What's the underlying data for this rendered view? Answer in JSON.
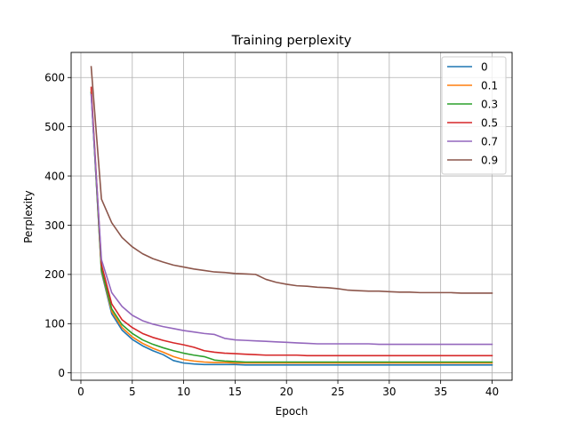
{
  "chart_data": {
    "type": "line",
    "title": "Training perplexity",
    "xlabel": "Epoch",
    "ylabel": "Perplexity",
    "xlim": [
      -0.95,
      41.95
    ],
    "ylim": [
      -15,
      651
    ],
    "xticks": [
      0,
      5,
      10,
      15,
      20,
      25,
      30,
      35,
      40
    ],
    "yticks": [
      0,
      100,
      200,
      300,
      400,
      500,
      600
    ],
    "grid": true,
    "legend_position": "top-right",
    "x": [
      1,
      2,
      3,
      4,
      5,
      6,
      7,
      8,
      9,
      10,
      11,
      12,
      13,
      14,
      15,
      16,
      17,
      18,
      19,
      20,
      21,
      22,
      23,
      24,
      25,
      26,
      27,
      28,
      29,
      30,
      31,
      32,
      33,
      34,
      35,
      36,
      37,
      38,
      39,
      40
    ],
    "series": [
      {
        "name": "0",
        "color": "#1f77b4",
        "values": [
          570,
          205,
          120,
          87,
          68,
          55,
          45,
          37,
          25,
          20,
          18,
          17,
          17,
          17,
          17,
          16,
          16,
          16,
          16,
          16,
          16,
          16,
          16,
          16,
          16,
          16,
          16,
          16,
          16,
          16,
          16,
          16,
          16,
          16,
          16,
          16,
          16,
          16,
          16,
          16
        ]
      },
      {
        "name": "0.1",
        "color": "#ff7f0e",
        "values": [
          575,
          208,
          125,
          92,
          73,
          60,
          50,
          42,
          33,
          27,
          24,
          22,
          21,
          21,
          20,
          20,
          20,
          20,
          20,
          20,
          20,
          20,
          20,
          20,
          20,
          20,
          20,
          20,
          20,
          20,
          20,
          20,
          20,
          20,
          20,
          20,
          20,
          20,
          20,
          20
        ]
      },
      {
        "name": "0.3",
        "color": "#2ca02c",
        "values": [
          570,
          210,
          130,
          98,
          80,
          67,
          58,
          51,
          45,
          40,
          36,
          33,
          26,
          24,
          23,
          22,
          22,
          22,
          22,
          22,
          22,
          22,
          22,
          22,
          22,
          22,
          22,
          22,
          22,
          22,
          22,
          22,
          22,
          22,
          22,
          22,
          22,
          22,
          22,
          22
        ]
      },
      {
        "name": "0.5",
        "color": "#d62728",
        "values": [
          580,
          220,
          140,
          108,
          92,
          80,
          72,
          66,
          61,
          57,
          52,
          45,
          42,
          40,
          39,
          38,
          37,
          36,
          36,
          36,
          36,
          35,
          35,
          35,
          35,
          35,
          35,
          35,
          35,
          35,
          35,
          35,
          35,
          35,
          35,
          35,
          35,
          35,
          35,
          35
        ]
      },
      {
        "name": "0.7",
        "color": "#9467bd",
        "values": [
          565,
          230,
          163,
          135,
          117,
          106,
          99,
          94,
          90,
          86,
          83,
          80,
          78,
          70,
          67,
          66,
          65,
          64,
          63,
          62,
          61,
          60,
          59,
          59,
          59,
          59,
          59,
          59,
          58,
          58,
          58,
          58,
          58,
          58,
          58,
          58,
          58,
          58,
          58,
          58
        ]
      },
      {
        "name": "0.9",
        "color": "#8c564b",
        "values": [
          622,
          353,
          305,
          275,
          256,
          242,
          232,
          225,
          219,
          215,
          211,
          208,
          205,
          204,
          202,
          201,
          200,
          190,
          184,
          180,
          177,
          176,
          174,
          173,
          171,
          168,
          167,
          166,
          166,
          165,
          164,
          164,
          163,
          163,
          163,
          163,
          162,
          162,
          162,
          162
        ]
      }
    ]
  }
}
